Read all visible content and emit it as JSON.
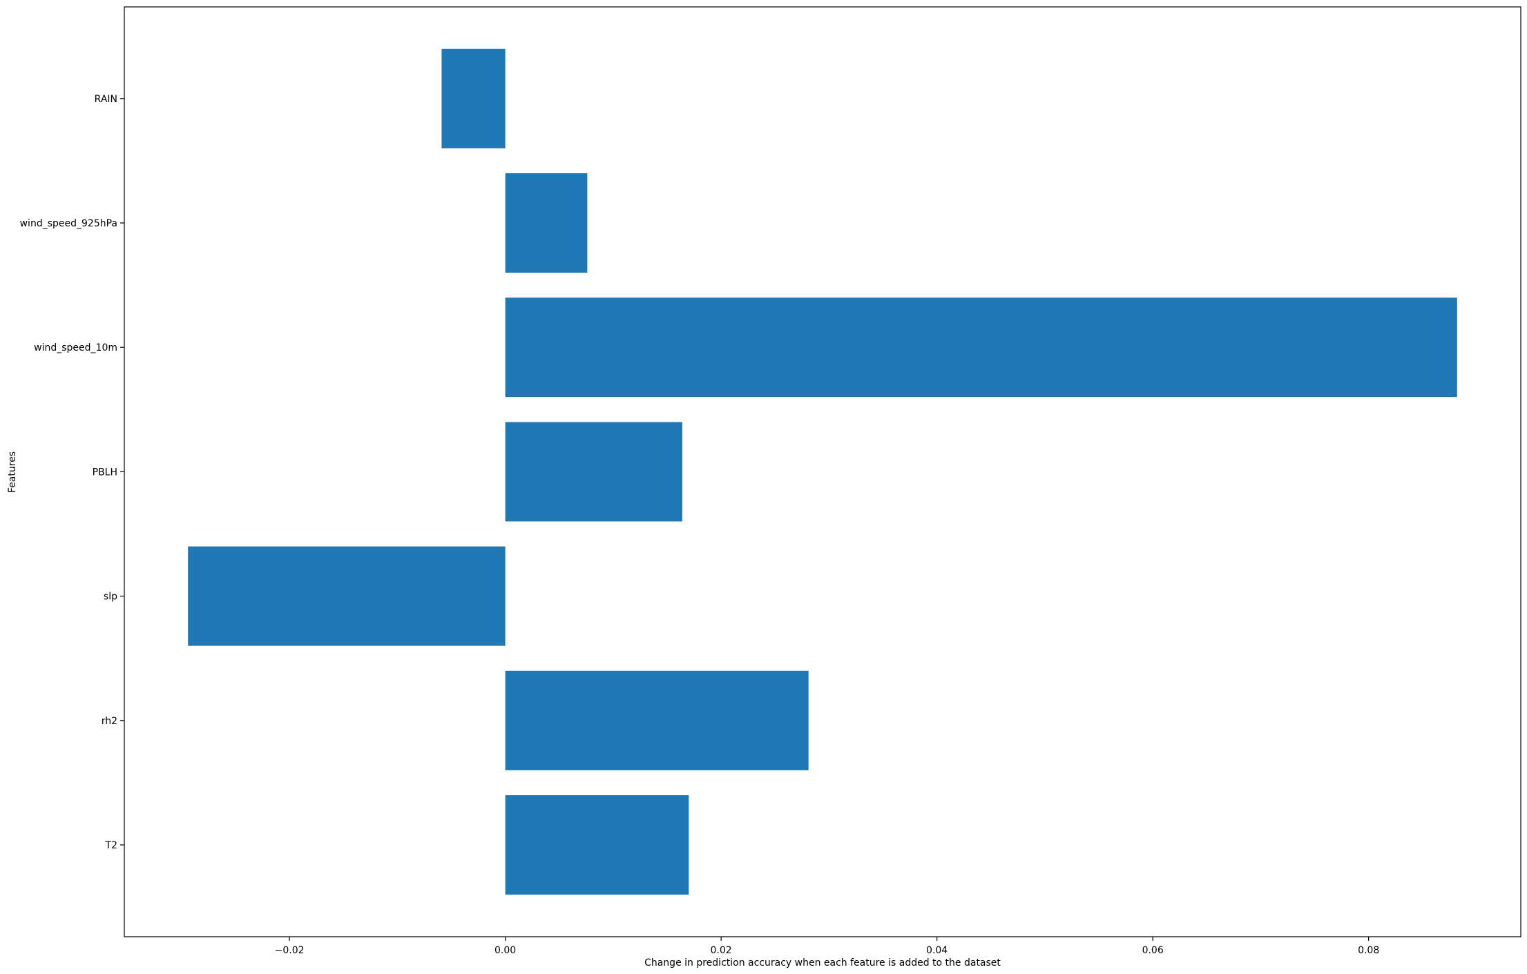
{
  "chart_data": {
    "type": "bar",
    "orientation": "horizontal",
    "categories": [
      "T2",
      "rh2",
      "slp",
      "PBLH",
      "wind_speed_10m",
      "wind_speed_925hPa",
      "RAIN"
    ],
    "values": [
      0.017,
      0.0281,
      -0.0294,
      0.0164,
      0.0882,
      0.0076,
      -0.0059
    ],
    "xlabel": "Change in prediction accuracy when each feature is added to the dataset",
    "ylabel": "Features",
    "xlim": [
      -0.0353,
      0.0941
    ],
    "xticks": [
      -0.02,
      0.0,
      0.02,
      0.04,
      0.06,
      0.08
    ],
    "xtick_labels": [
      "−0.02",
      "0.00",
      "0.02",
      "0.04",
      "0.06",
      "0.08"
    ],
    "grid": false,
    "bar_color": "#1f77b4"
  }
}
